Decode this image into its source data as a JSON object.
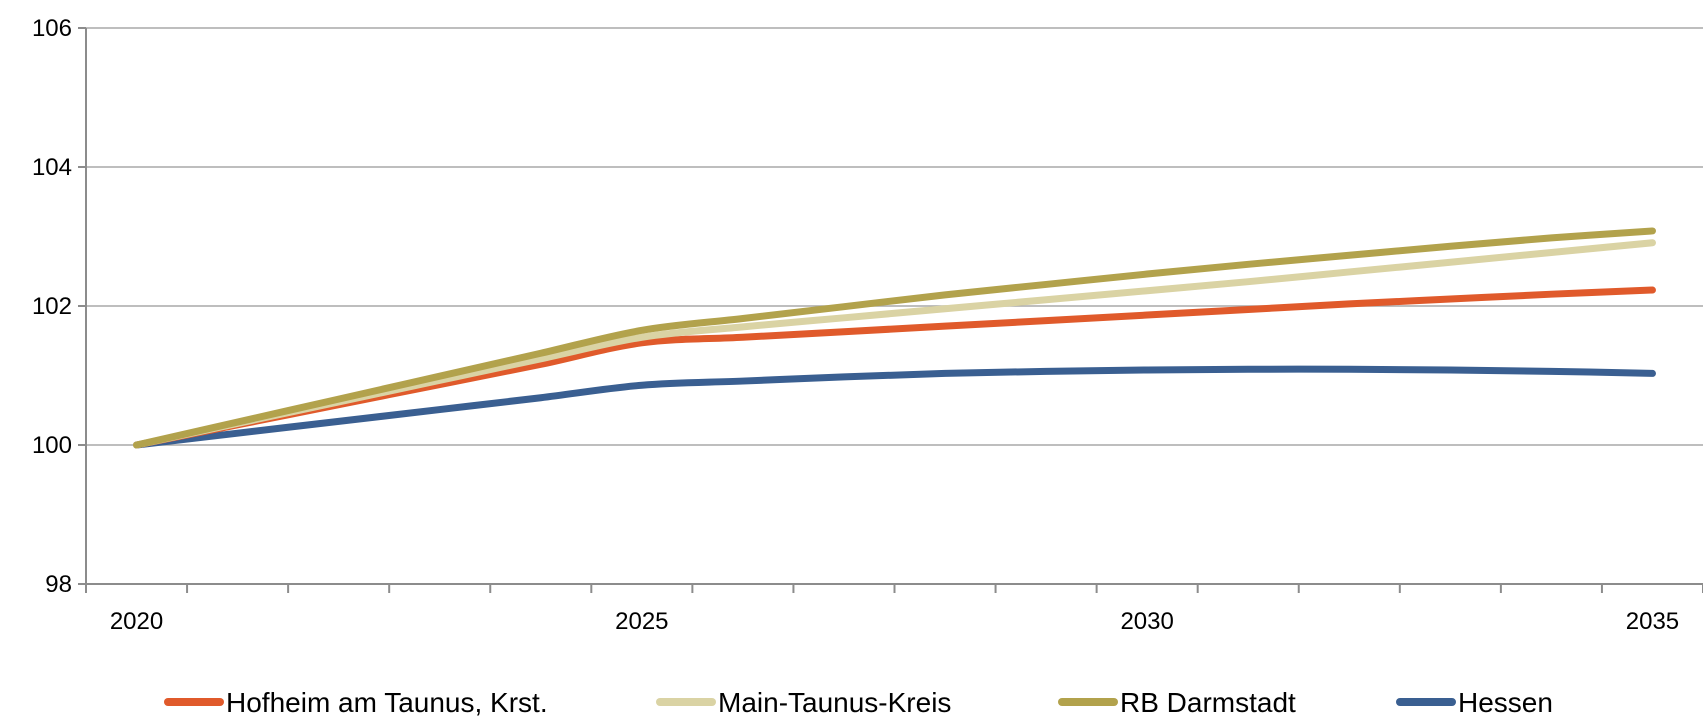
{
  "chart_data": {
    "type": "line",
    "title": "",
    "xlabel": "",
    "ylabel": "",
    "x": [
      2020,
      2021,
      2022,
      2023,
      2024,
      2025,
      2026,
      2027,
      2028,
      2029,
      2030,
      2031,
      2032,
      2033,
      2034,
      2035
    ],
    "xlim": [
      2019.5,
      2035.5
    ],
    "ylim": [
      98,
      106
    ],
    "x_ticks": [
      2020,
      2025,
      2030,
      2035
    ],
    "x_tick_labels": [
      "2020",
      "2025",
      "2030",
      "2035"
    ],
    "y_ticks": [
      98,
      100,
      102,
      104,
      106
    ],
    "y_tick_labels": [
      "98",
      "100",
      "102",
      "104",
      "106"
    ],
    "grid": "horizontal",
    "legend_position": "bottom",
    "series": [
      {
        "name": "Hofheim am Taunus, Krst.",
        "color": "#E05A2B",
        "values": [
          100.0,
          100.29,
          100.58,
          100.87,
          101.16,
          101.47,
          101.55,
          101.63,
          101.71,
          101.79,
          101.87,
          101.95,
          102.03,
          102.1,
          102.17,
          102.23
        ]
      },
      {
        "name": "Main-Taunus-Kreis",
        "color": "#DAD3A4",
        "values": [
          100.0,
          100.31,
          100.62,
          100.93,
          101.24,
          101.55,
          101.7,
          101.83,
          101.96,
          102.09,
          102.22,
          102.35,
          102.49,
          102.63,
          102.77,
          102.91
        ]
      },
      {
        "name": "RB Darmstadt",
        "color": "#B2A24C",
        "values": [
          100.0,
          100.33,
          100.66,
          100.99,
          101.32,
          101.65,
          101.82,
          101.99,
          102.16,
          102.31,
          102.46,
          102.6,
          102.73,
          102.86,
          102.98,
          103.08
        ]
      },
      {
        "name": "Hessen",
        "color": "#3A5F91",
        "values": [
          100.0,
          100.17,
          100.34,
          100.51,
          100.68,
          100.86,
          100.92,
          100.98,
          101.03,
          101.06,
          101.08,
          101.09,
          101.09,
          101.08,
          101.06,
          101.03
        ]
      }
    ]
  }
}
